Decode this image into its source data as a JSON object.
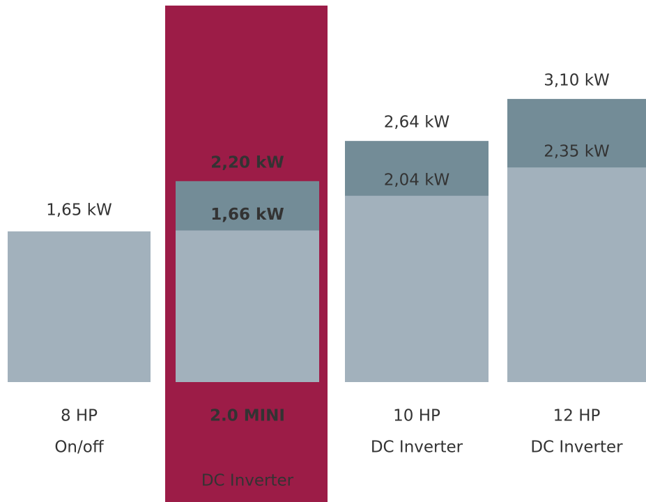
{
  "chart_data": {
    "type": "bar",
    "categories": [
      "8 HP",
      "2.0 MINI",
      "10 HP",
      "12 HP"
    ],
    "subcategories": [
      "On/off",
      "DC Inverter",
      "DC Inverter",
      "DC Inverter"
    ],
    "highlight": 1,
    "highlight_color": "#9c1c47",
    "series": [
      {
        "color": "#a2b1bc",
        "values": [
          1.65,
          1.66,
          2.04,
          2.35
        ],
        "value_labels": [
          "1,65 kW",
          "1,66 kW",
          "2,04 kW",
          "2,35 kW"
        ]
      },
      {
        "color": "#738c97",
        "values": [
          null,
          2.2,
          2.64,
          3.1
        ],
        "value_labels": [
          null,
          "2,20 kW",
          "2,64 kW",
          "3,10 kW"
        ]
      }
    ]
  }
}
